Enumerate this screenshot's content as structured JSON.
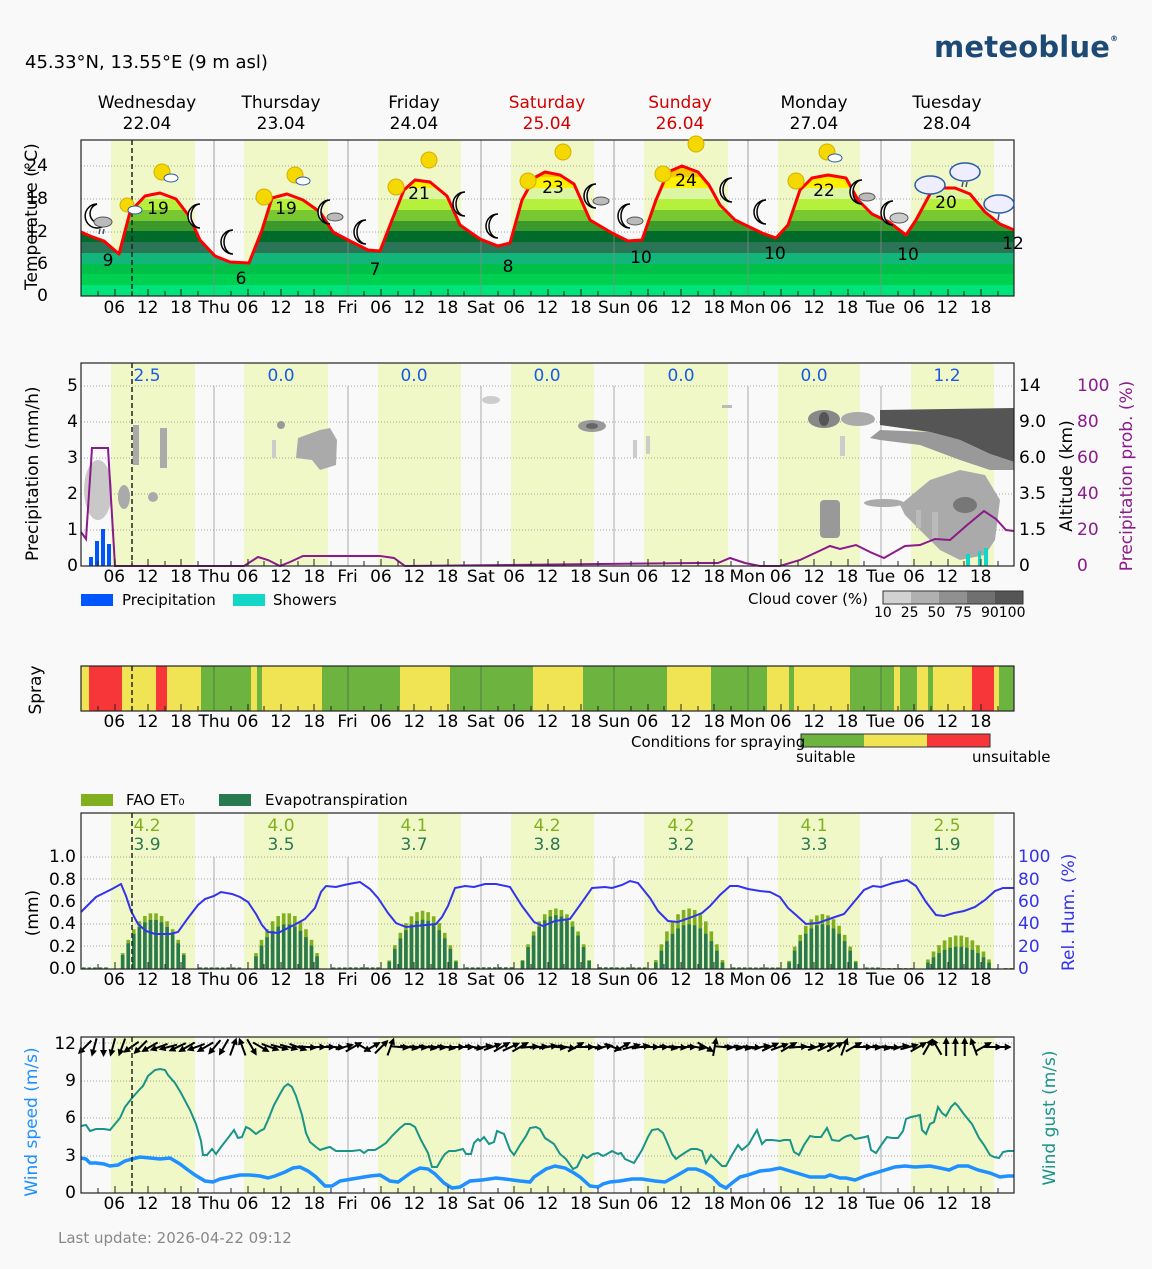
{
  "header": {
    "location": "45.33°N, 13.55°E (9 m asl)",
    "logo": "meteoblue"
  },
  "days": [
    {
      "name": "Wednesday",
      "date": "22.04",
      "weekend": false,
      "short": ""
    },
    {
      "name": "Thursday",
      "date": "23.04",
      "weekend": false,
      "short": "Thu"
    },
    {
      "name": "Friday",
      "date": "24.04",
      "weekend": false,
      "short": "Fri"
    },
    {
      "name": "Saturday",
      "date": "25.04",
      "weekend": true,
      "short": "Sat"
    },
    {
      "name": "Sunday",
      "date": "26.04",
      "weekend": true,
      "short": "Sun"
    },
    {
      "name": "Monday",
      "date": "27.04",
      "weekend": false,
      "short": "Mon"
    },
    {
      "name": "Tuesday",
      "date": "28.04",
      "weekend": false,
      "short": "Tue"
    }
  ],
  "hour_ticks": [
    "06",
    "12",
    "18"
  ],
  "current_time_marker": "Wed 09:12",
  "colors": {
    "weekend": "#d40000",
    "daylight": "#f0f8c8",
    "temp_line": "#ff0000",
    "precip": "#0055ff",
    "showers": "#12d6c6",
    "precip_prob": "#8b1a8b",
    "fao_et0": "#80b020",
    "evapotranspiration": "#2a7a50",
    "rel_hum": "#3333ee",
    "wind_speed": "#1e90ff",
    "wind_gust": "#1a9488",
    "spray_suitable": "#6db33f",
    "spray_moderate": "#f0e455",
    "spray_unsuitable": "#f63638",
    "logo": "#1d4a74"
  },
  "temperature_panel": {
    "ylabel": "Temperature (°C)",
    "yticks": [
      "0",
      "6",
      "12",
      "18",
      "24"
    ],
    "min_labels": [
      "9",
      "6",
      "7",
      "8",
      "10",
      "10",
      "10",
      "12"
    ],
    "max_labels": [
      "19",
      "19",
      "21",
      "23",
      "24",
      "22",
      "20"
    ]
  },
  "precip_panel": {
    "ylabel": "Precipitation (mm/h)",
    "yticks": [
      "0",
      "1",
      "2",
      "3",
      "4",
      "5"
    ],
    "alt_label": "Altitude (km)",
    "alt_ticks": [
      "0",
      "1.5",
      "3.5",
      "6.0",
      "9.0",
      "14"
    ],
    "prob_label": "Precipitation prob. (%)",
    "prob_ticks": [
      "0",
      "20",
      "40",
      "60",
      "80",
      "100"
    ],
    "daily_totals": [
      "2.5",
      "0.0",
      "0.0",
      "0.0",
      "0.0",
      "0.0",
      "1.2"
    ],
    "legend": {
      "precipitation": "Precipitation",
      "showers": "Showers"
    },
    "cloud_legend": {
      "title": "Cloud cover (%)",
      "ticks": [
        "10",
        "25",
        "50",
        "75",
        "90",
        "100"
      ]
    }
  },
  "spray_panel": {
    "ylabel": "Spray",
    "legend_title": "Conditions for spraying",
    "suitable": "suitable",
    "unsuitable": "unsuitable"
  },
  "et_panel": {
    "ylabel": "(mm)",
    "yticks": [
      "0.0",
      "0.2",
      "0.4",
      "0.6",
      "0.8",
      "1.0"
    ],
    "rh_label": "Rel. Hum. (%)",
    "rh_ticks": [
      "0",
      "20",
      "40",
      "60",
      "80",
      "100"
    ],
    "legend": {
      "fao": "FAO ET₀",
      "evapo": "Evapotranspiration"
    },
    "daily_fao": [
      "4.2",
      "4.0",
      "4.1",
      "4.2",
      "4.2",
      "4.1",
      "2.5"
    ],
    "daily_evapo": [
      "3.9",
      "3.5",
      "3.7",
      "3.8",
      "3.2",
      "3.3",
      "1.9"
    ]
  },
  "wind_panel": {
    "ylabel": "Wind speed (m/s)",
    "y2label": "Wind gust (m/s)",
    "yticks": [
      "0",
      "3",
      "6",
      "9",
      "12"
    ]
  },
  "footer": {
    "last_update": "Last update: 2026-04-22 09:12"
  },
  "chart_data": [
    {
      "type": "area",
      "title": "Temperature",
      "ylabel": "Temperature (°C)",
      "ylim": [
        0,
        28
      ],
      "x": [
        "Wed 00",
        "Wed 06",
        "Wed 12",
        "Wed 18",
        "Thu 00",
        "Thu 06",
        "Thu 12",
        "Thu 18",
        "Fri 00",
        "Fri 06",
        "Fri 12",
        "Fri 18",
        "Sat 00",
        "Sat 06",
        "Sat 12",
        "Sat 18",
        "Sun 00",
        "Sun 06",
        "Sun 12",
        "Sun 18",
        "Mon 00",
        "Mon 06",
        "Mon 12",
        "Mon 18",
        "Tue 00",
        "Tue 06",
        "Tue 12",
        "Tue 18",
        "Tue 24"
      ],
      "series": [
        {
          "name": "Temperature",
          "values": [
            12.5,
            9,
            18,
            17,
            8,
            6,
            18,
            16,
            10,
            7.5,
            21,
            19,
            11,
            8.5,
            22.5,
            19,
            12,
            10,
            23.5,
            20,
            13,
            10,
            22,
            19,
            12.5,
            10,
            20,
            18,
            12
          ]
        }
      ],
      "daily_min": [
        9,
        6,
        7,
        8,
        10,
        10,
        10,
        12
      ],
      "daily_max": [
        19,
        19,
        21,
        23,
        24,
        22,
        20
      ]
    },
    {
      "type": "bar",
      "title": "Precipitation",
      "ylabel": "Precipitation (mm/h)",
      "ylim": [
        0,
        5.5
      ],
      "daily_totals_mm": [
        2.5,
        0.0,
        0.0,
        0.0,
        0.0,
        0.0,
        1.2
      ],
      "series": [
        {
          "name": "Precipitation",
          "x": [
            "Wed 01",
            "Wed 02",
            "Wed 03",
            "Wed 04"
          ],
          "values": [
            0.25,
            0.65,
            1.0,
            0.6
          ]
        },
        {
          "name": "Showers",
          "x": [
            "Tue 16",
            "Tue 18",
            "Tue 19"
          ],
          "values": [
            0.3,
            0.4,
            0.5
          ]
        },
        {
          "name": "Precipitation prob. (%)",
          "x": [
            "Wed 00",
            "Wed 01",
            "Wed 02",
            "Wed 05",
            "Wed 06",
            "Thu 06",
            "Thu 09",
            "Thu 12",
            "Thu 15",
            "Fri 09",
            "Fri 12",
            "Sun 21",
            "Mon 12",
            "Mon 18",
            "Tue 03",
            "Tue 12",
            "Tue 18",
            "Tue 24"
          ],
          "values": [
            18,
            14,
            65,
            65,
            0,
            0,
            5,
            0,
            5,
            5,
            0,
            5,
            10,
            10,
            5,
            15,
            30,
            20
          ]
        }
      ]
    },
    {
      "type": "heatmap",
      "title": "Conditions for spraying",
      "categories": [
        "suitable",
        "moderate",
        "unsuitable"
      ],
      "segments": [
        [
          "Wed 00",
          "Wed 01",
          "moderate"
        ],
        [
          "Wed 01",
          "Wed 06",
          "unsuitable"
        ],
        [
          "Wed 06",
          "Wed 12",
          "moderate"
        ],
        [
          "Wed 12",
          "Wed 14",
          "unsuitable"
        ],
        [
          "Wed 14",
          "Wed 20",
          "moderate"
        ],
        [
          "Wed 20",
          "Thu 08",
          "suitable"
        ],
        [
          "Thu 08",
          "Thu 09",
          "moderate"
        ],
        [
          "Thu 09",
          "Thu 10",
          "suitable"
        ],
        [
          "Thu 10",
          "Thu 21",
          "moderate"
        ],
        [
          "Thu 21",
          "Fri 09",
          "suitable"
        ],
        [
          "Fri 09",
          "Fri 18",
          "moderate"
        ],
        [
          "Fri 18",
          "Sat 09",
          "suitable"
        ],
        [
          "Sat 09",
          "Sat 18",
          "moderate"
        ],
        [
          "Sat 18",
          "Sun 11",
          "suitable"
        ],
        [
          "Sun 11",
          "Sun 19",
          "moderate"
        ],
        [
          "Sun 19",
          "Mon 03",
          "suitable"
        ],
        [
          "Mon 03",
          "Mon 07",
          "moderate"
        ],
        [
          "Mon 07",
          "Mon 08",
          "suitable"
        ],
        [
          "Mon 08",
          "Mon 18",
          "moderate"
        ],
        [
          "Mon 18",
          "Tue 01",
          "suitable"
        ],
        [
          "Tue 01",
          "Tue 02",
          "moderate"
        ],
        [
          "Tue 02",
          "Tue 05",
          "suitable"
        ],
        [
          "Tue 05",
          "Tue 07",
          "moderate"
        ],
        [
          "Tue 07",
          "Tue 08",
          "suitable"
        ],
        [
          "Tue 08",
          "Tue 15",
          "moderate"
        ],
        [
          "Tue 15",
          "Tue 19",
          "unsuitable"
        ],
        [
          "Tue 19",
          "Tue 20",
          "moderate"
        ],
        [
          "Tue 20",
          "Tue 24",
          "suitable"
        ]
      ]
    },
    {
      "type": "bar",
      "title": "Evapotranspiration",
      "ylabel": "(mm)",
      "ylim": [
        0,
        1.0
      ],
      "daily_fao_et0": [
        4.2,
        4.0,
        4.1,
        4.2,
        4.2,
        4.1,
        2.5
      ],
      "daily_evapotranspiration": [
        3.9,
        3.5,
        3.7,
        3.8,
        3.2,
        3.3,
        1.9
      ],
      "hourly_peak_fao": [
        0.5,
        0.5,
        0.52,
        0.54,
        0.54,
        0.49,
        0.3
      ],
      "hourly_peak_evapo": [
        0.44,
        0.4,
        0.44,
        0.48,
        0.4,
        0.4,
        0.2
      ],
      "rel_hum_pct": {
        "x": [
          "Wed 00",
          "Wed 08",
          "Wed 13",
          "Wed 18",
          "Thu 02",
          "Thu 08",
          "Thu 13",
          "Thu 20",
          "Fri 00",
          "Fri 08",
          "Fri 14",
          "Fri 20",
          "Sat 00",
          "Sat 07",
          "Sat 13",
          "Sat 20",
          "Sun 03",
          "Sun 07",
          "Sun 13",
          "Sun 20",
          "Mon 04",
          "Mon 13",
          "Mon 20",
          "Tue 06",
          "Tue 13",
          "Tue 20",
          "Tue 24"
        ],
        "values": [
          52,
          73,
          32,
          34,
          65,
          63,
          34,
          48,
          75,
          79,
          40,
          44,
          74,
          77,
          39,
          45,
          71,
          78,
          40,
          48,
          69,
          38,
          47,
          68,
          43,
          54,
          72
        ]
      }
    },
    {
      "type": "line",
      "title": "Wind",
      "ylabel": "Wind speed (m/s)",
      "ylim": [
        0,
        12
      ],
      "x": [
        "Wed 00",
        "Wed 06",
        "Wed 12",
        "Wed 18",
        "Thu 00",
        "Thu 06",
        "Thu 12",
        "Thu 18",
        "Fri 00",
        "Fri 06",
        "Fri 12",
        "Fri 18",
        "Sat 00",
        "Sat 06",
        "Sat 12",
        "Sat 18",
        "Sun 00",
        "Sun 06",
        "Sun 12",
        "Sun 18",
        "Mon 00",
        "Mon 06",
        "Mon 12",
        "Mon 18",
        "Tue 00",
        "Tue 06",
        "Tue 12",
        "Tue 18",
        "Tue 24"
      ],
      "series": [
        {
          "name": "Wind speed",
          "values": [
            2.8,
            2.2,
            2.9,
            2.6,
            1.0,
            1.5,
            2.5,
            0.6,
            1.2,
            1.4,
            1.8,
            0.4,
            1.0,
            1.2,
            0.8,
            1.5,
            0.6,
            1.0,
            1.2,
            0.5,
            1.6,
            2.0,
            1.5,
            1.0,
            1.4,
            2.0,
            2.0,
            1.5,
            1.2
          ]
        },
        {
          "name": "Wind gust",
          "values": [
            5.5,
            5.2,
            10.0,
            7.0,
            3.2,
            4.5,
            9.5,
            4.5,
            3.6,
            3.5,
            5.5,
            2.5,
            3.5,
            4.0,
            4.5,
            4.3,
            2.8,
            3.0,
            4.5,
            2.8,
            3.8,
            3.0,
            4.0,
            3.8,
            4.0,
            5.0,
            7.0,
            3.0,
            3.3
          ]
        }
      ]
    }
  ]
}
